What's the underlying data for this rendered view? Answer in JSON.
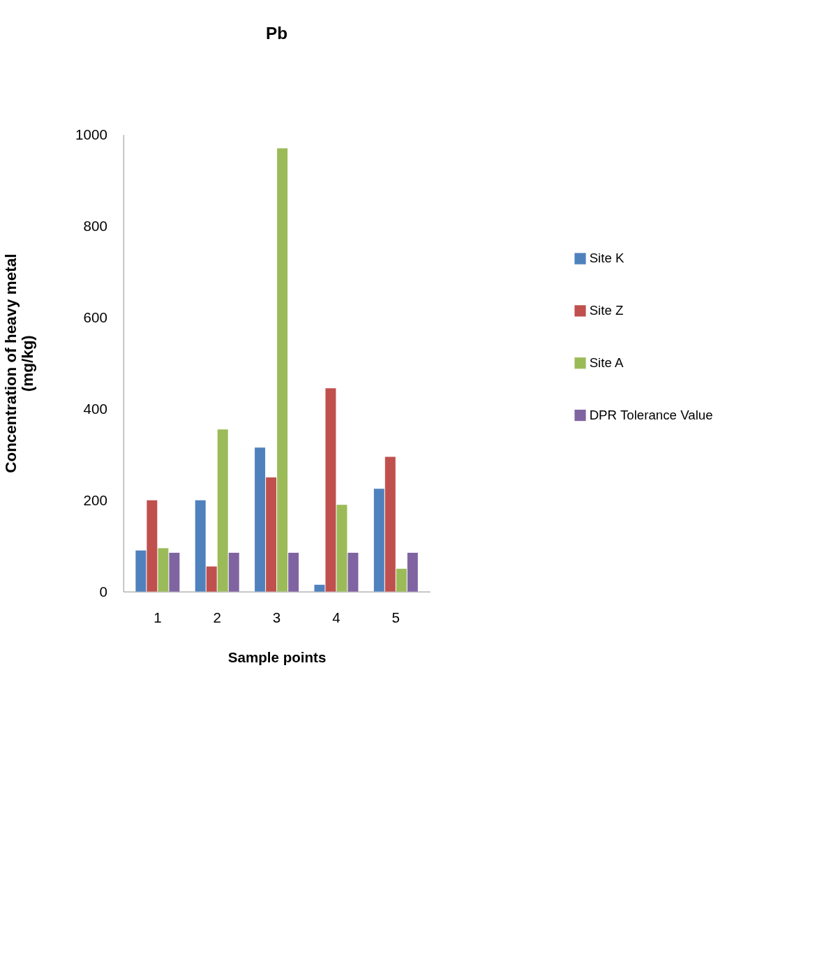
{
  "chart_data": {
    "type": "bar",
    "title": "Pb",
    "xlabel": "Sample points",
    "ylabel": "Concentration of heavy metal\n(mg/kg)",
    "categories": [
      "1",
      "2",
      "3",
      "4",
      "5"
    ],
    "series": [
      {
        "name": "Site K",
        "color": "#4f81bd",
        "values": [
          90,
          200,
          315,
          15,
          225
        ]
      },
      {
        "name": "Site Z",
        "color": "#c0504d",
        "values": [
          200,
          55,
          250,
          445,
          295
        ]
      },
      {
        "name": "Site A",
        "color": "#9bbb59",
        "values": [
          95,
          355,
          970,
          190,
          50
        ]
      },
      {
        "name": "DPR  Tolerance Value",
        "color": "#8064a2",
        "values": [
          85,
          85,
          85,
          85,
          85
        ]
      }
    ],
    "ylim": [
      0,
      1000
    ],
    "yticks": [
      0,
      200,
      400,
      600,
      800,
      1000
    ],
    "grid": false,
    "legend": "right"
  }
}
